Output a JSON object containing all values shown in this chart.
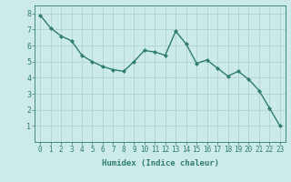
{
  "x": [
    0,
    1,
    2,
    3,
    4,
    5,
    6,
    7,
    8,
    9,
    10,
    11,
    12,
    13,
    14,
    15,
    16,
    17,
    18,
    19,
    20,
    21,
    22,
    23
  ],
  "y": [
    7.9,
    7.1,
    6.6,
    6.3,
    5.4,
    5.0,
    4.7,
    4.5,
    4.4,
    5.0,
    5.7,
    5.6,
    5.4,
    6.9,
    6.1,
    4.9,
    5.1,
    4.6,
    4.1,
    4.4,
    3.9,
    3.2,
    2.1,
    1.0
  ],
  "xlabel": "Humidex (Indice chaleur)",
  "ylim": [
    0,
    8.5
  ],
  "xlim": [
    -0.5,
    23.5
  ],
  "yticks": [
    1,
    2,
    3,
    4,
    5,
    6,
    7,
    8
  ],
  "xticks": [
    0,
    1,
    2,
    3,
    4,
    5,
    6,
    7,
    8,
    9,
    10,
    11,
    12,
    13,
    14,
    15,
    16,
    17,
    18,
    19,
    20,
    21,
    22,
    23
  ],
  "line_color": "#2e7d6e",
  "marker": "D",
  "marker_size": 2.0,
  "bg_color": "#cceaea",
  "grid_color": "#aacece",
  "line_width": 1.0,
  "xlabel_fontsize": 6.5,
  "tick_fontsize": 5.5
}
